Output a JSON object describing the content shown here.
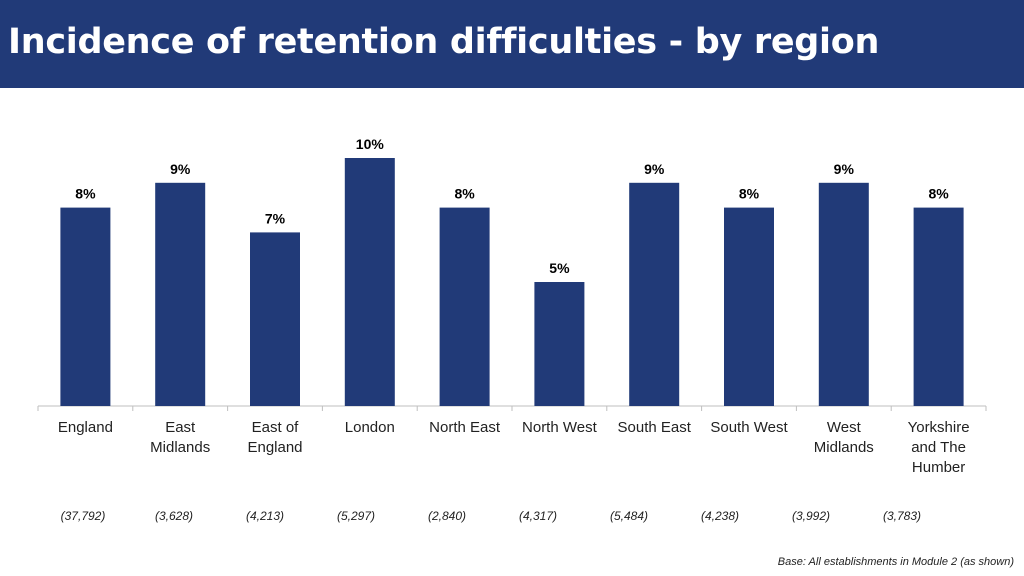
{
  "header": {
    "title": "Incidence of retention difficulties - by region"
  },
  "footer": {
    "base": "Base: All establishments in Module 2 (as shown)"
  },
  "colors": {
    "header_bg": "#213a78",
    "bar": "#213a78"
  },
  "chart_data": {
    "type": "bar",
    "title": "Incidence of retention difficulties - by region",
    "categories": [
      [
        "England"
      ],
      [
        "East",
        "Midlands"
      ],
      [
        "East of",
        "England"
      ],
      [
        "London"
      ],
      [
        "North East"
      ],
      [
        "North West"
      ],
      [
        "South East"
      ],
      [
        "South West"
      ],
      [
        "West",
        "Midlands"
      ],
      [
        "Yorkshire",
        "and The",
        "Humber"
      ]
    ],
    "values": [
      8,
      9,
      7,
      10,
      8,
      5,
      9,
      8,
      9,
      8
    ],
    "value_labels": [
      "8%",
      "9%",
      "7%",
      "10%",
      "8%",
      "5%",
      "9%",
      "8%",
      "9%",
      "8%"
    ],
    "base_sizes": [
      "(37,792)",
      "(3,628)",
      "(4,213)",
      "(5,297)",
      "(2,840)",
      "(4,317)",
      "(5,484)",
      "(4,238)",
      "(3,992)",
      "(3,783)"
    ],
    "ylim": [
      0,
      10
    ],
    "grid": false,
    "legend": "none"
  }
}
